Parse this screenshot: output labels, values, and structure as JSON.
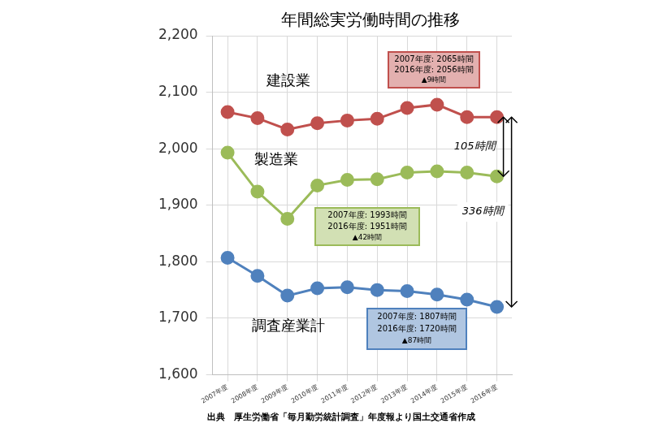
{
  "chart_data": {
    "type": "line",
    "title": "年間総実労働時間の推移",
    "categories": [
      "2007年度",
      "2008年度",
      "2009年度",
      "2010年度",
      "2011年度",
      "2012年度",
      "2013年度",
      "2014年度",
      "2015年度",
      "2016年度"
    ],
    "series": [
      {
        "name": "建設業",
        "color": "#c0504d",
        "marker": "circle",
        "line_style": "solid",
        "values": [
          2065,
          2054,
          2034,
          2045,
          2050,
          2053,
          2072,
          2078,
          2056,
          2056
        ]
      },
      {
        "name": "製造業",
        "color": "#9bbb59",
        "marker": "circle",
        "line_style": "solid",
        "values": [
          1993,
          1924,
          1876,
          1935,
          1945,
          1946,
          1958,
          1960,
          1958,
          1951
        ]
      },
      {
        "name": "調査産業計",
        "color": "#4f81bd",
        "marker": "circle",
        "line_style": "solid",
        "values": [
          1807,
          1775,
          1740,
          1753,
          1755,
          1750,
          1748,
          1742,
          1733,
          1720
        ]
      }
    ],
    "ylim": [
      1600,
      2200
    ],
    "yticks": [
      {
        "value": 1600,
        "label": "1,600"
      },
      {
        "value": 1700,
        "label": "1,700"
      },
      {
        "value": 1800,
        "label": "1,800"
      },
      {
        "value": 1900,
        "label": "1,900"
      },
      {
        "value": 2000,
        "label": "2,000"
      },
      {
        "value": 2100,
        "label": "2,100"
      },
      {
        "value": 2200,
        "label": "2,200"
      }
    ],
    "grid": true,
    "annotations": [
      {
        "series": "建設業",
        "text": [
          "2007年度: 2065時間",
          "2016年度: 2056時間",
          "▲9時間"
        ]
      },
      {
        "series": "製造業",
        "text": [
          "2007年度: 1993時間",
          "2016年度: 1951時間",
          "▲42時間"
        ]
      },
      {
        "series": "調査産業計",
        "text": [
          "2007年度: 1807時間",
          "2016年度: 1720時間",
          "▲87時間"
        ]
      }
    ],
    "arrows": [
      {
        "from": "建設業",
        "to": "製造業",
        "label": "105時間"
      },
      {
        "from": "建設業",
        "to": "調査産業計",
        "label": "336時間"
      }
    ],
    "source": "出典　厚生労働省「毎月勤労統計調査」年度報より国土交通省作成"
  }
}
